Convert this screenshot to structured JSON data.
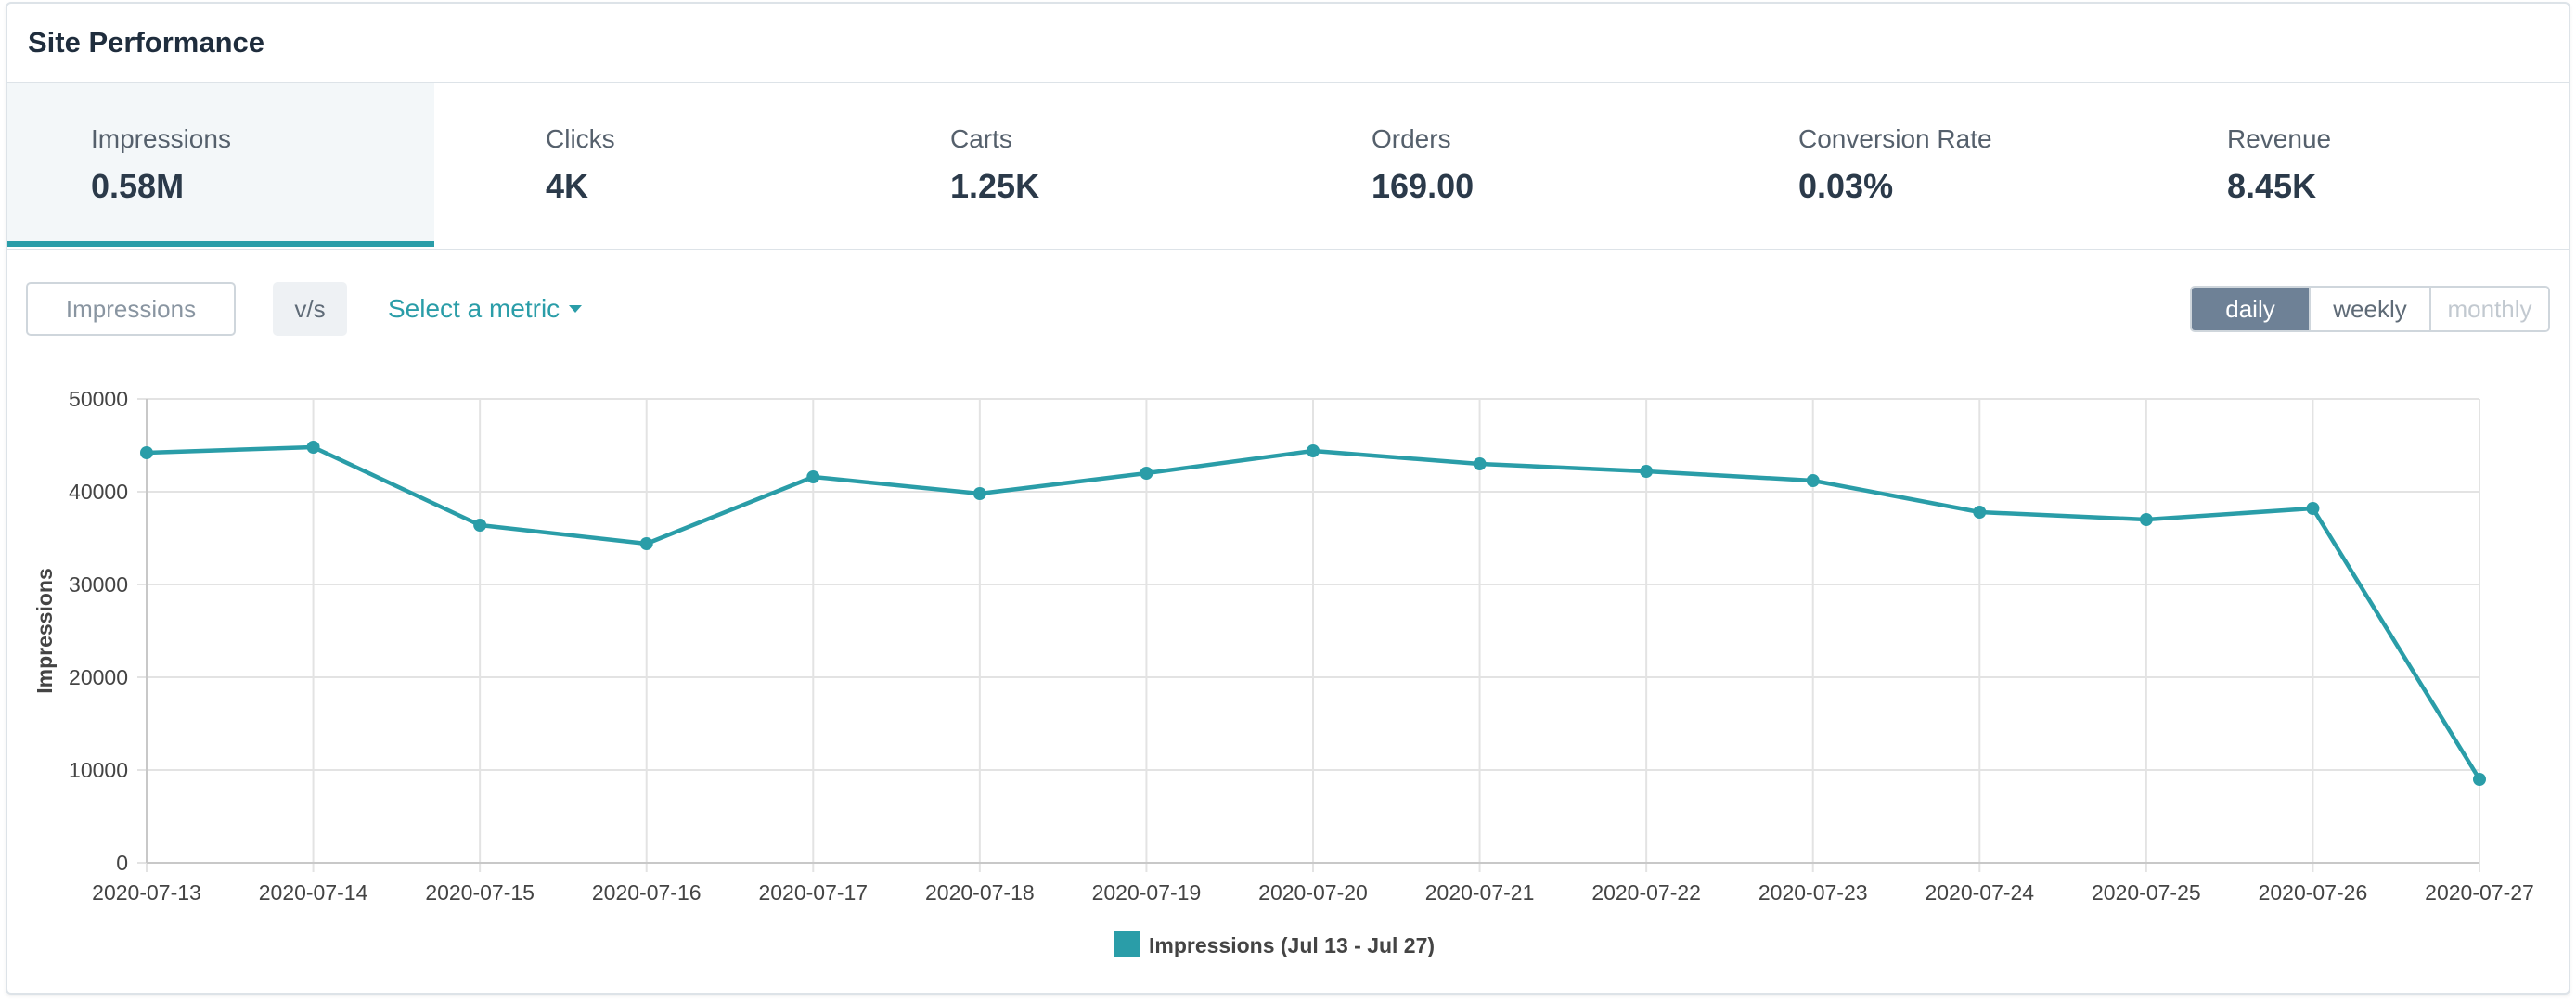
{
  "card": {
    "title": "Site Performance"
  },
  "kpis": [
    {
      "label": "Impressions",
      "value": "0.58M",
      "active": true
    },
    {
      "label": "Clicks",
      "value": "4K",
      "active": false
    },
    {
      "label": "Carts",
      "value": "1.25K",
      "active": false
    },
    {
      "label": "Orders",
      "value": "169.00",
      "active": false
    },
    {
      "label": "Conversion Rate",
      "value": "0.03%",
      "active": false
    },
    {
      "label": "Revenue",
      "value": "8.45K",
      "active": false
    }
  ],
  "controls": {
    "primary_metric": "Impressions",
    "vs_label": "v/s",
    "select_metric_label": "Select a metric",
    "periods": {
      "daily": "daily",
      "weekly": "weekly",
      "monthly": "monthly"
    },
    "selected_period": "daily"
  },
  "colors": {
    "accent": "#2a9da8",
    "active_period": "#6e8196"
  },
  "chart_data": {
    "type": "line",
    "ylabel": "Impressions",
    "ylim": [
      0,
      50000
    ],
    "yticks": [
      0,
      10000,
      20000,
      30000,
      40000,
      50000
    ],
    "grid": true,
    "legend_position": "bottom",
    "categories": [
      "2020-07-13",
      "2020-07-14",
      "2020-07-15",
      "2020-07-16",
      "2020-07-17",
      "2020-07-18",
      "2020-07-19",
      "2020-07-20",
      "2020-07-21",
      "2020-07-22",
      "2020-07-23",
      "2020-07-24",
      "2020-07-25",
      "2020-07-26",
      "2020-07-27"
    ],
    "series": [
      {
        "name": "Impressions (Jul 13 - Jul 27)",
        "color": "#2a9da8",
        "values": [
          44200,
          44800,
          36400,
          34400,
          41600,
          39800,
          42000,
          44400,
          43000,
          42200,
          41200,
          37800,
          37000,
          38200,
          9000
        ]
      }
    ]
  }
}
